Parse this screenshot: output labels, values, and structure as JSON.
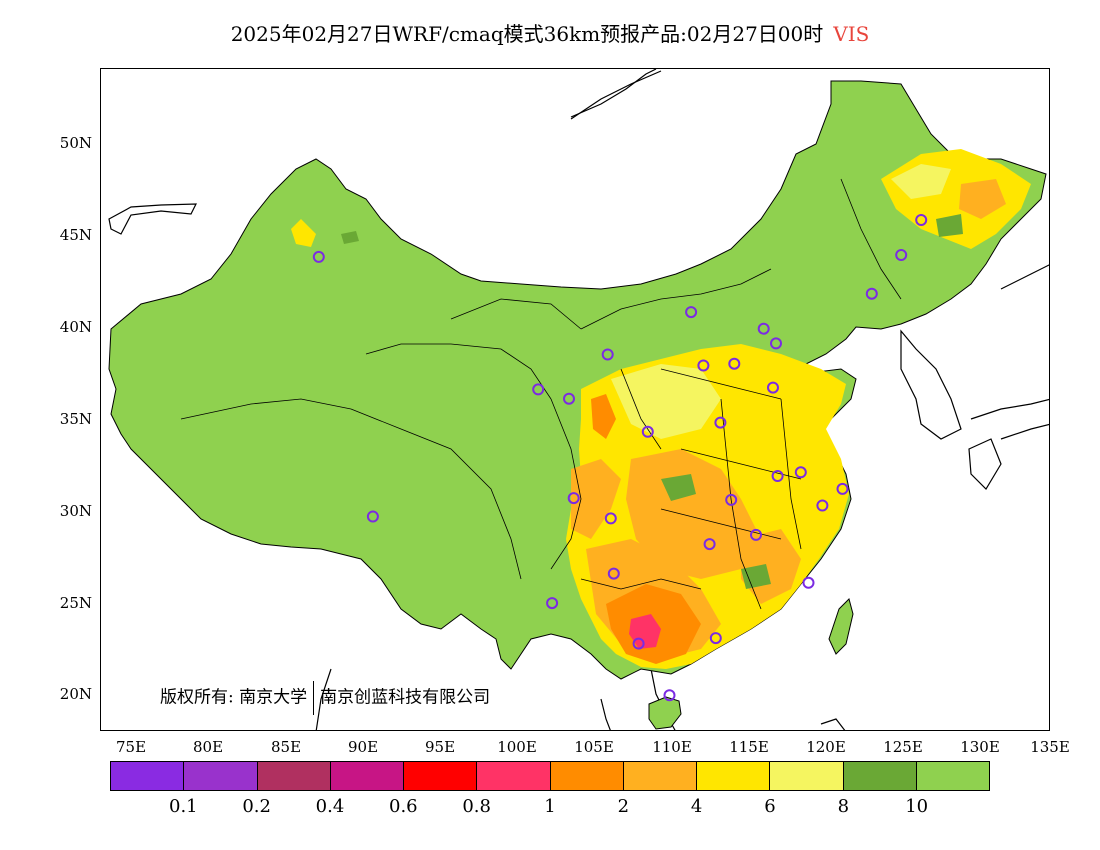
{
  "title": {
    "text": "2025年02月27日WRF/cmaq模式36km预报产品:02月27日00时",
    "variable": "VIS"
  },
  "axes": {
    "lat_labels": [
      "50N",
      "45N",
      "40N",
      "35N",
      "30N",
      "25N",
      "20N"
    ],
    "lon_labels": [
      "75E",
      "80E",
      "85E",
      "90E",
      "95E",
      "100E",
      "105E",
      "110E",
      "115E",
      "120E",
      "125E",
      "130E",
      "135E"
    ],
    "lon_range": [
      73.5,
      135
    ],
    "lat_range": [
      18,
      54
    ]
  },
  "copyright": {
    "prefix": "版权所有:",
    "org1": "南京大学",
    "org2": "南京创蓝科技有限公司"
  },
  "legend": {
    "colors": [
      "#8a2be2",
      "#9932cc",
      "#b03060",
      "#c71585",
      "#ff0000",
      "#ff3366",
      "#ff8c00",
      "#ffb020",
      "#ffe600",
      "#f5f560",
      "#6aa835",
      "#8fd14f"
    ],
    "labels": [
      "0.1",
      "0.2",
      "0.4",
      "0.6",
      "0.8",
      "1",
      "2",
      "4",
      "6",
      "8",
      "10"
    ]
  },
  "colors": {
    "land_green": "#8fd14f",
    "dark_green": "#6aa835",
    "yellow": "#ffe600",
    "light_yellow": "#f5f560",
    "orange": "#ffb020",
    "dark_orange": "#ff8c00",
    "red_pink": "#ff3366",
    "station_marker": "#7b2be2"
  },
  "stations": [
    {
      "lon": 87.6,
      "lat": 43.8
    },
    {
      "lon": 91.1,
      "lat": 29.7
    },
    {
      "lon": 101.8,
      "lat": 36.6
    },
    {
      "lon": 103.8,
      "lat": 36.1
    },
    {
      "lon": 106.3,
      "lat": 38.5
    },
    {
      "lon": 111.7,
      "lat": 40.8
    },
    {
      "lon": 116.4,
      "lat": 39.9
    },
    {
      "lon": 117.2,
      "lat": 39.1
    },
    {
      "lon": 112.5,
      "lat": 37.9
    },
    {
      "lon": 114.5,
      "lat": 38.0
    },
    {
      "lon": 117.0,
      "lat": 36.7
    },
    {
      "lon": 113.6,
      "lat": 34.8
    },
    {
      "lon": 108.9,
      "lat": 34.3
    },
    {
      "lon": 104.1,
      "lat": 30.7
    },
    {
      "lon": 106.5,
      "lat": 29.6
    },
    {
      "lon": 114.3,
      "lat": 30.6
    },
    {
      "lon": 112.9,
      "lat": 28.2
    },
    {
      "lon": 115.9,
      "lat": 28.7
    },
    {
      "lon": 117.3,
      "lat": 31.9
    },
    {
      "lon": 118.8,
      "lat": 32.1
    },
    {
      "lon": 120.2,
      "lat": 30.3
    },
    {
      "lon": 121.5,
      "lat": 31.2
    },
    {
      "lon": 119.3,
      "lat": 26.1
    },
    {
      "lon": 113.3,
      "lat": 23.1
    },
    {
      "lon": 108.3,
      "lat": 22.8
    },
    {
      "lon": 110.3,
      "lat": 20.0
    },
    {
      "lon": 102.7,
      "lat": 25.0
    },
    {
      "lon": 106.7,
      "lat": 26.6
    },
    {
      "lon": 125.3,
      "lat": 43.9
    },
    {
      "lon": 126.6,
      "lat": 45.8
    },
    {
      "lon": 123.4,
      "lat": 41.8
    }
  ]
}
